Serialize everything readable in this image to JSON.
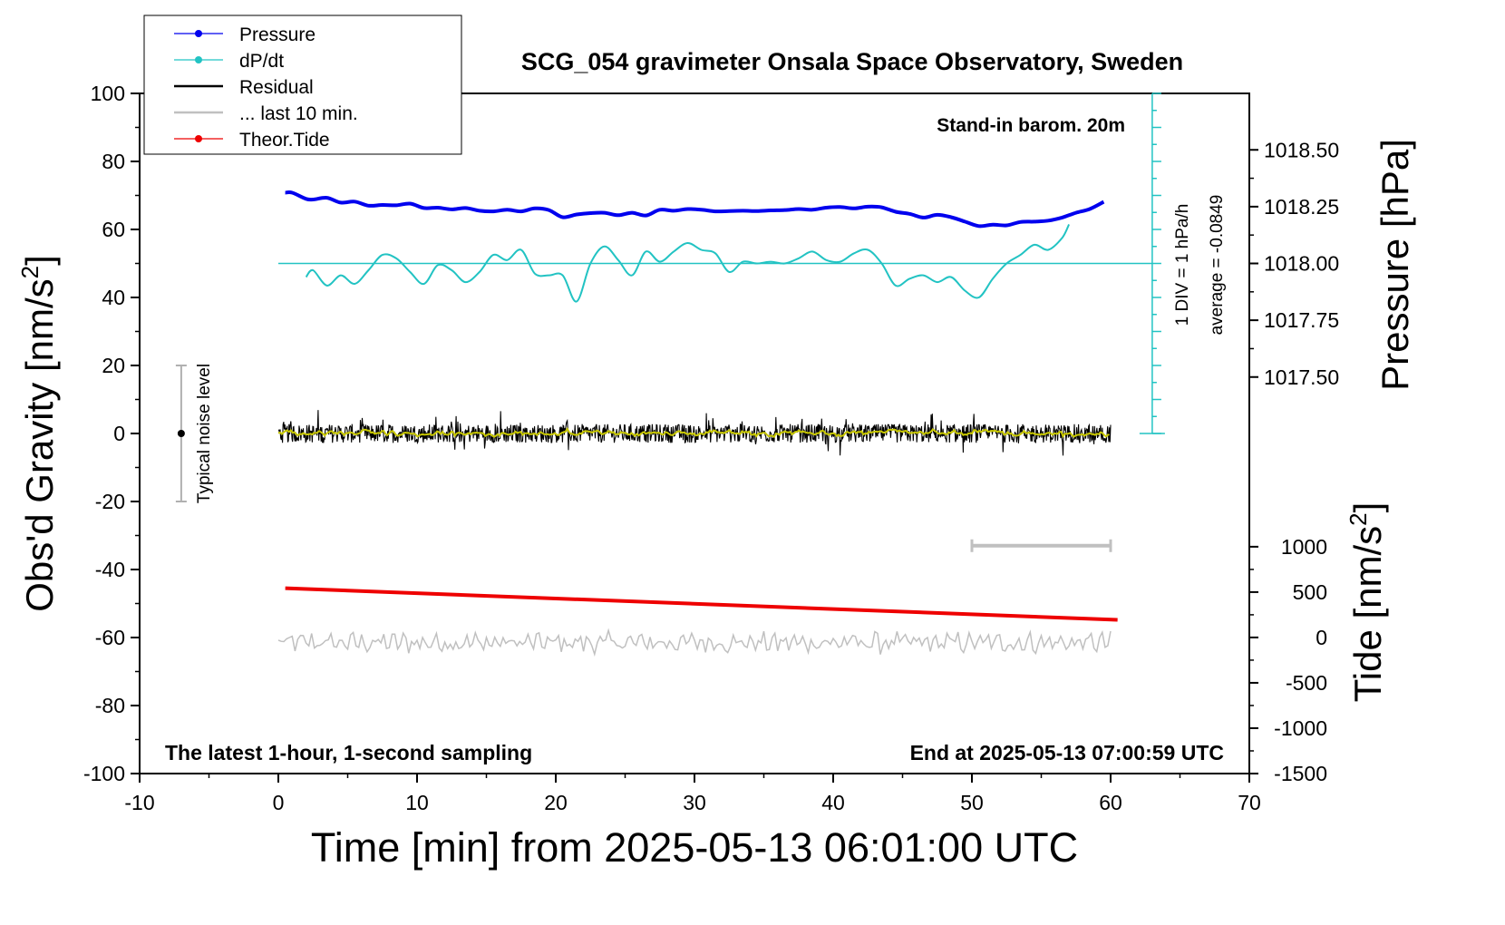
{
  "chart_data": {
    "type": "line",
    "title": "SCG_054 gravimeter Onsala Space Observatory, Sweden",
    "xlabel": "Time [min] from 2025-05-13 06:01:00 UTC",
    "ylabel_left": "Obs'd Gravity [nm/s",
    "ylabel_left_sup": "2",
    "ylabel_left_end": "]",
    "ylabel_right_top": "Pressure [hPa]",
    "ylabel_right_bottom": "Tide [nm/s",
    "ylabel_right_bottom_sup": "2",
    "ylabel_right_bottom_end": "]",
    "xlim": [
      -10,
      70
    ],
    "ylim": [
      -100,
      100
    ],
    "x_ticks": [
      "-10",
      "0",
      "10",
      "20",
      "30",
      "40",
      "50",
      "60",
      "70"
    ],
    "y_ticks": [
      "-100",
      "-80",
      "-60",
      "-40",
      "-20",
      "0",
      "20",
      "40",
      "60",
      "80",
      "100"
    ],
    "pressure_axis": {
      "ticks": [
        "1017.50",
        "1017.75",
        "1018.00",
        "1018.25",
        "1018.50"
      ],
      "tick_values": [
        1017.5,
        1017.75,
        1018.0,
        1018.25,
        1018.5
      ],
      "maps_to_gravity": {
        "1018.00": 50,
        "1018.25": 66.7
      }
    },
    "tide_axis": {
      "ticks": [
        "-1500",
        "-1000",
        "-500",
        "0",
        "500",
        "1000"
      ],
      "tick_values": [
        -1500,
        -1000,
        -500,
        0,
        500,
        1000
      ],
      "maps_to_gravity": {
        "-1500": -100,
        "1000": -33.3
      }
    },
    "legend": {
      "position": "top-left",
      "entries": [
        {
          "label": "Pressure",
          "color": "#0000ee",
          "marker": true
        },
        {
          "label": "dP/dt",
          "color": "#22c3c3",
          "marker": true
        },
        {
          "label": "Residual",
          "color": "#000000",
          "marker": false
        },
        {
          "label": "... last 10 min.",
          "color": "#c0c0c0",
          "marker": false
        },
        {
          "label": "Theor.Tide",
          "color": "#ee0000",
          "marker": true
        }
      ]
    },
    "annotations": {
      "barometer": "Stand-in barom. 20m",
      "dpdt_scale": "1 DIV = 1 hPa/h",
      "dpdt_average": "average = -0.0849",
      "noise": "Typical noise level",
      "footer_left": "The latest 1-hour, 1-second sampling",
      "footer_right": "End at 2025-05-13 07:00:59 UTC"
    },
    "noise_bar": {
      "x": -7,
      "y_center": 0,
      "y_range": [
        -20,
        20
      ]
    },
    "last10_bar": {
      "x_range": [
        50,
        60
      ],
      "y": -33
    },
    "dpdt_scale_axis": {
      "x": 63,
      "y_range": [
        0,
        100
      ],
      "divisions": 10,
      "zero_line_y": 50
    },
    "series": [
      {
        "name": "Pressure",
        "color": "#0000ee",
        "x": [
          0.5,
          1.0,
          2.0,
          2.5,
          3.5,
          4.5,
          5.5,
          6.5,
          7.5,
          8.5,
          9.5,
          10.5,
          11.5,
          12.5,
          13.5,
          14.5,
          15.5,
          16.5,
          17.5,
          18.5,
          19.5,
          20.5,
          21.5,
          22.5,
          23.5,
          24.5,
          25.5,
          26.5,
          27.5,
          28.5,
          29.5,
          30.5,
          31.5,
          32.5,
          33.5,
          34.5,
          35.5,
          36.5,
          37.5,
          38.5,
          39.5,
          40.5,
          41.5,
          42.5,
          43.5,
          44.5,
          45.5,
          46.5,
          47.5,
          48.5,
          49.5,
          50.5,
          51.5,
          52.5,
          53.5,
          54.5,
          55.5,
          56.5,
          57.5,
          58.5,
          59.5
        ],
        "values": [
          70.8,
          70.8,
          69.0,
          68.8,
          69.3,
          67.9,
          68.2,
          67.0,
          67.2,
          67.1,
          67.6,
          66.3,
          66.4,
          65.9,
          66.3,
          65.5,
          65.3,
          65.8,
          65.3,
          66.2,
          65.7,
          63.6,
          64.4,
          64.8,
          64.9,
          64.2,
          64.9,
          64.1,
          65.8,
          65.5,
          66.0,
          65.8,
          65.3,
          65.4,
          65.5,
          65.4,
          65.6,
          65.7,
          66.0,
          65.8,
          66.4,
          66.6,
          66.2,
          66.7,
          66.5,
          65.2,
          64.6,
          63.5,
          64.3,
          63.6,
          62.3,
          61.0,
          61.4,
          61.2,
          62.2,
          62.3,
          62.6,
          63.5,
          64.9,
          66.0,
          68.1
        ]
      },
      {
        "name": "dP/dt",
        "color": "#22c3c3",
        "x": [
          2.0,
          2.5,
          3.5,
          4.5,
          5.5,
          6.5,
          7.5,
          8.5,
          9.5,
          10.5,
          11.5,
          12.5,
          13.5,
          14.5,
          15.5,
          16.5,
          17.5,
          18.5,
          19.5,
          20.5,
          21.5,
          22.5,
          23.5,
          24.5,
          25.5,
          26.5,
          27.5,
          28.5,
          29.5,
          30.5,
          31.5,
          32.5,
          33.5,
          34.5,
          35.5,
          36.5,
          37.5,
          38.5,
          39.5,
          40.5,
          41.5,
          42.5,
          43.5,
          44.5,
          45.5,
          46.5,
          47.5,
          48.5,
          49.5,
          50.5,
          51.5,
          52.5,
          53.5,
          54.5,
          55.5,
          56.5,
          57.0
        ],
        "values": [
          46.0,
          48.0,
          43.5,
          46.5,
          44.0,
          48.0,
          52.5,
          51.5,
          47.5,
          44.0,
          49.5,
          48.0,
          44.5,
          47.5,
          52.5,
          51.0,
          54.0,
          47.0,
          46.5,
          46.5,
          38.8,
          50.0,
          55.0,
          51.0,
          46.5,
          53.5,
          50.5,
          53.5,
          56.0,
          54.0,
          53.0,
          47.5,
          50.5,
          50.0,
          50.5,
          50.0,
          51.5,
          53.5,
          51.0,
          50.5,
          53.0,
          54.0,
          50.0,
          43.5,
          45.5,
          46.5,
          44.5,
          46.0,
          42.0,
          40.0,
          45.5,
          50.0,
          52.5,
          55.5,
          54.0,
          57.5,
          61.5
        ]
      },
      {
        "name": "Residual",
        "color": "#000000",
        "x_range": [
          0,
          60
        ],
        "y_center": 0,
        "y_spread": [
          -6.5,
          7.0
        ],
        "smoothed_color": "#c8c800"
      },
      {
        "name": "... last 10 min.",
        "color": "#c0c0c0",
        "x_range": [
          0,
          60
        ],
        "y_center": -61.5,
        "y_spread": [
          -67.5,
          -57
        ]
      },
      {
        "name": "Theor.Tide",
        "color": "#ee0000",
        "x": [
          0.5,
          60.5
        ],
        "values": [
          -45.5,
          -54.8
        ]
      }
    ]
  }
}
